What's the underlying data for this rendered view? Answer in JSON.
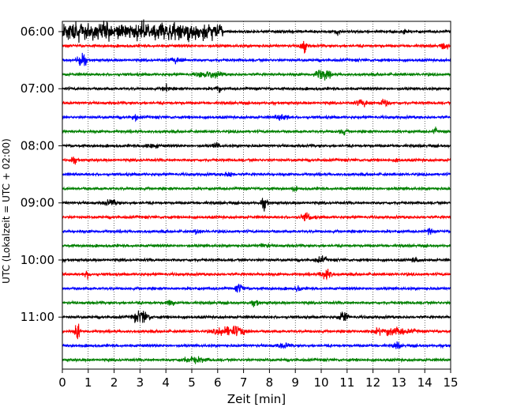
{
  "chart_data": {
    "type": "line",
    "title": "",
    "xlabel": "Zeit  [min]",
    "ylabel": "UTC (Lokalzeit = UTC + 02:00)",
    "xlim": [
      0,
      15
    ],
    "x_ticks": [
      "0",
      "1",
      "2",
      "3",
      "4",
      "5",
      "6",
      "7",
      "8",
      "9",
      "10",
      "11",
      "12",
      "13",
      "14",
      "15"
    ],
    "y_ticks": [
      "06:00",
      "07:00",
      "08:00",
      "09:00",
      "10:00",
      "11:00"
    ],
    "grid": "vertical dotted",
    "trace_interval_min": 15,
    "colors": [
      "#000000",
      "#ff0000",
      "#0000ff",
      "#008000"
    ],
    "series": [
      {
        "time": "06:00",
        "color": "#000000",
        "events": [
          [
            0.0,
            6.2,
            0.9
          ],
          [
            10.5,
            0.25,
            0.3
          ],
          [
            13.1,
            0.2,
            0.25
          ]
        ]
      },
      {
        "time": "06:15",
        "color": "#ff0000",
        "events": [
          [
            9.2,
            0.2,
            0.7
          ],
          [
            14.6,
            0.3,
            0.35
          ]
        ]
      },
      {
        "time": "06:30",
        "color": "#0000ff",
        "events": [
          [
            0.6,
            0.3,
            0.6
          ],
          [
            4.2,
            0.5,
            0.3
          ]
        ]
      },
      {
        "time": "06:45",
        "color": "#008000",
        "events": [
          [
            5.2,
            0.9,
            0.35
          ],
          [
            9.8,
            0.5,
            0.55
          ]
        ]
      },
      {
        "time": "07:00",
        "color": "#000000",
        "events": [
          [
            3.9,
            0.2,
            0.45
          ],
          [
            5.9,
            0.2,
            0.4
          ]
        ]
      },
      {
        "time": "07:15",
        "color": "#ff0000",
        "events": [
          [
            11.3,
            0.6,
            0.3
          ],
          [
            12.3,
            0.3,
            0.45
          ]
        ]
      },
      {
        "time": "07:30",
        "color": "#0000ff",
        "events": [
          [
            2.7,
            0.2,
            0.35
          ],
          [
            8.2,
            0.6,
            0.3
          ]
        ]
      },
      {
        "time": "07:45",
        "color": "#008000",
        "events": [
          [
            10.7,
            0.3,
            0.35
          ],
          [
            14.3,
            0.2,
            0.3
          ]
        ]
      },
      {
        "time": "08:00",
        "color": "#000000",
        "events": [
          [
            3.2,
            0.5,
            0.3
          ],
          [
            5.8,
            0.3,
            0.3
          ]
        ]
      },
      {
        "time": "08:15",
        "color": "#ff0000",
        "events": [
          [
            0.3,
            0.3,
            0.3
          ],
          [
            12.8,
            0.3,
            0.25
          ]
        ]
      },
      {
        "time": "08:30",
        "color": "#0000ff",
        "events": [
          [
            6.3,
            0.3,
            0.3
          ]
        ]
      },
      {
        "time": "08:45",
        "color": "#008000",
        "events": [
          [
            8.8,
            0.3,
            0.25
          ]
        ]
      },
      {
        "time": "09:00",
        "color": "#000000",
        "events": [
          [
            1.6,
            0.5,
            0.35
          ],
          [
            7.7,
            0.2,
            0.55
          ]
        ]
      },
      {
        "time": "09:15",
        "color": "#ff0000",
        "events": [
          [
            9.2,
            0.5,
            0.35
          ]
        ]
      },
      {
        "time": "09:30",
        "color": "#0000ff",
        "events": [
          [
            5.1,
            0.2,
            0.35
          ],
          [
            14.1,
            0.2,
            0.35
          ]
        ]
      },
      {
        "time": "09:45",
        "color": "#008000",
        "events": [
          [
            7.6,
            0.4,
            0.25
          ]
        ]
      },
      {
        "time": "10:00",
        "color": "#000000",
        "events": [
          [
            9.8,
            0.4,
            0.35
          ],
          [
            13.5,
            0.3,
            0.3
          ]
        ]
      },
      {
        "time": "10:15",
        "color": "#ff0000",
        "events": [
          [
            0.8,
            0.3,
            0.35
          ],
          [
            10.0,
            0.4,
            0.5
          ]
        ]
      },
      {
        "time": "10:30",
        "color": "#0000ff",
        "events": [
          [
            6.7,
            0.3,
            0.45
          ],
          [
            9.0,
            0.2,
            0.35
          ]
        ]
      },
      {
        "time": "10:45",
        "color": "#008000",
        "events": [
          [
            4.0,
            0.3,
            0.35
          ],
          [
            7.3,
            0.3,
            0.3
          ]
        ]
      },
      {
        "time": "11:00",
        "color": "#000000",
        "events": [
          [
            2.8,
            0.5,
            0.6
          ],
          [
            10.7,
            0.3,
            0.6
          ]
        ]
      },
      {
        "time": "11:15",
        "color": "#ff0000",
        "events": [
          [
            0.5,
            0.15,
            0.8
          ],
          [
            6.0,
            1.0,
            0.5
          ],
          [
            12.0,
            1.5,
            0.35
          ]
        ]
      },
      {
        "time": "11:30",
        "color": "#0000ff",
        "events": [
          [
            8.3,
            0.5,
            0.3
          ],
          [
            12.8,
            0.3,
            0.3
          ]
        ]
      },
      {
        "time": "11:45",
        "color": "#008000",
        "events": [
          [
            4.6,
            1.0,
            0.3
          ]
        ]
      }
    ]
  }
}
